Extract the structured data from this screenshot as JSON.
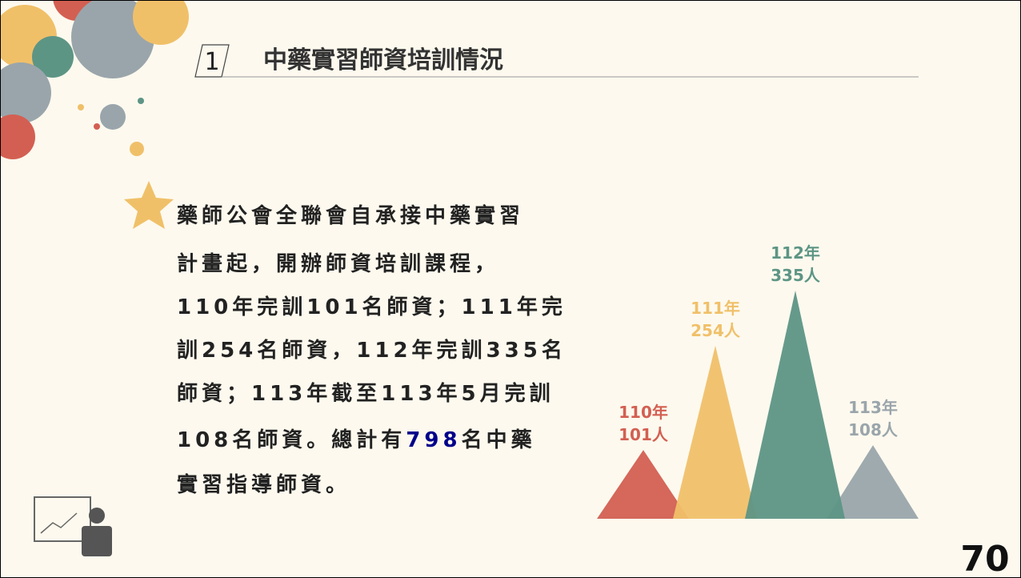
{
  "header": {
    "number": "1",
    "title": "中藥實習師資培訓情況"
  },
  "body": {
    "lines": [
      [
        "藥師公會全聯會自承接中藥實習"
      ],
      [
        "計畫起，開辦師資培訓課程，"
      ],
      [
        "110年完訓101名師資；111年完"
      ],
      [
        "訓254名師資，112年完訓335名"
      ],
      [
        "師資；113年截至113年5月完訓"
      ],
      [
        "108名師資。總計有",
        "798",
        "名中藥"
      ],
      [
        "實習指導師資。"
      ]
    ]
  },
  "chart_data": {
    "type": "triangle",
    "categories": [
      "110年",
      "111年",
      "112年",
      "113年"
    ],
    "values": [
      101,
      254,
      335,
      108
    ],
    "value_labels": [
      "101人",
      "254人",
      "335人",
      "108人"
    ],
    "colors": [
      "#d35f52",
      "#f0c069",
      "#5d9585",
      "#9aa5ab"
    ]
  },
  "page_number": "70"
}
